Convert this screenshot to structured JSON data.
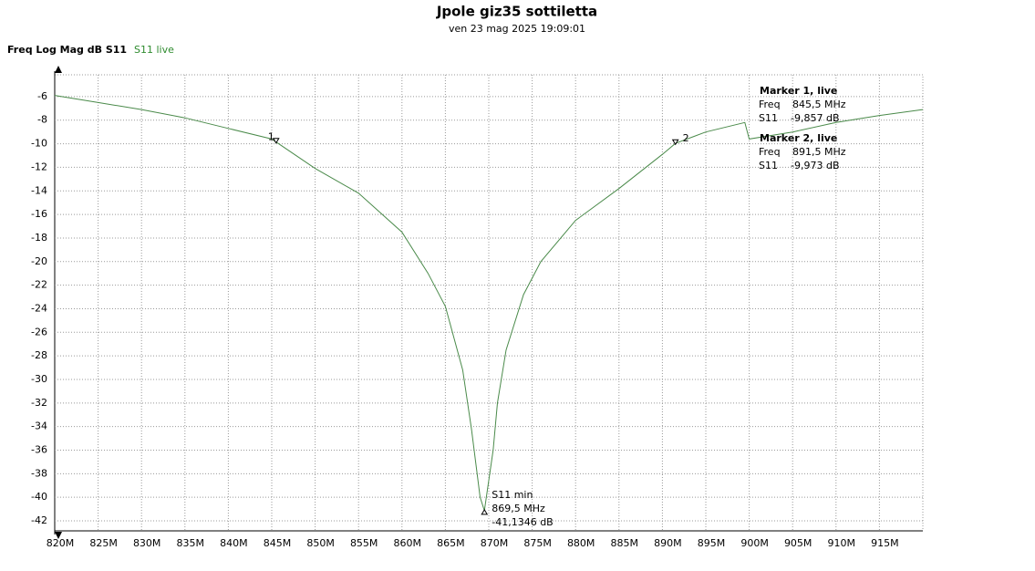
{
  "chart_data": {
    "type": "line",
    "title": "Jpole giz35 sottiletta",
    "subtitle": "ven 23 mag 2025 19:09:01",
    "y_label": "Freq Log Mag dB S11",
    "grid": true,
    "xlim": [
      820,
      920
    ],
    "ylim": [
      -42.85,
      -4.15
    ],
    "xticks": [
      {
        "value": 820,
        "label": "820M"
      },
      {
        "value": 825,
        "label": "825M"
      },
      {
        "value": 830,
        "label": "830M"
      },
      {
        "value": 835,
        "label": "835M"
      },
      {
        "value": 840,
        "label": "840M"
      },
      {
        "value": 845,
        "label": "845M"
      },
      {
        "value": 850,
        "label": "850M"
      },
      {
        "value": 855,
        "label": "855M"
      },
      {
        "value": 860,
        "label": "860M"
      },
      {
        "value": 865,
        "label": "865M"
      },
      {
        "value": 870,
        "label": "870M"
      },
      {
        "value": 875,
        "label": "875M"
      },
      {
        "value": 880,
        "label": "880M"
      },
      {
        "value": 885,
        "label": "885M"
      },
      {
        "value": 890,
        "label": "890M"
      },
      {
        "value": 895,
        "label": "895M"
      },
      {
        "value": 900,
        "label": "900M"
      },
      {
        "value": 905,
        "label": "905M"
      },
      {
        "value": 910,
        "label": "910M"
      },
      {
        "value": 915,
        "label": "915M"
      }
    ],
    "yticks": [
      -6,
      -8,
      -10,
      -12,
      -14,
      -16,
      -18,
      -20,
      -22,
      -24,
      -26,
      -28,
      -30,
      -32,
      -34,
      -36,
      -38,
      -40,
      -42
    ],
    "series": [
      {
        "name": "S11 live",
        "color": "#4a8a4a",
        "x": [
          820,
          825,
          830,
          835,
          840,
          845,
          845.5,
          850,
          855,
          860,
          863,
          865,
          867,
          868,
          869,
          869.5,
          870.5,
          871,
          872,
          874,
          876,
          880,
          885,
          890,
          891.5,
          895,
          899.5,
          900,
          905,
          910,
          915,
          920
        ],
        "values": [
          -5.9,
          -6.5,
          -7.1,
          -7.8,
          -8.7,
          -9.6,
          -9.857,
          -12.1,
          -14.2,
          -17.5,
          -21,
          -23.8,
          -29.2,
          -34.2,
          -40,
          -41.1346,
          -36,
          -32,
          -27.5,
          -22.8,
          -20,
          -16.5,
          -13.8,
          -10.9,
          -9.973,
          -9,
          -8.2,
          -9.6,
          -9,
          -8.2,
          -7.6,
          -7.1
        ]
      }
    ],
    "field_labels": [
      "Freq",
      "S11"
    ],
    "markers": [
      {
        "name": "1",
        "title": "Marker 1, live",
        "x": 845.5,
        "y": -9.857,
        "x_label": "845,5 MHz",
        "y_label": "-9,857 dB"
      },
      {
        "name": "2",
        "title": "Marker 2, live",
        "x": 891.5,
        "y": -9.973,
        "x_label": "891,5 MHz",
        "y_label": "-9,973 dB"
      }
    ],
    "minimum": {
      "title": "S11 min",
      "x": 869.5,
      "y": -41.1346,
      "x_label": "869,5 MHz",
      "y_label": "-41,1346 dB"
    }
  }
}
